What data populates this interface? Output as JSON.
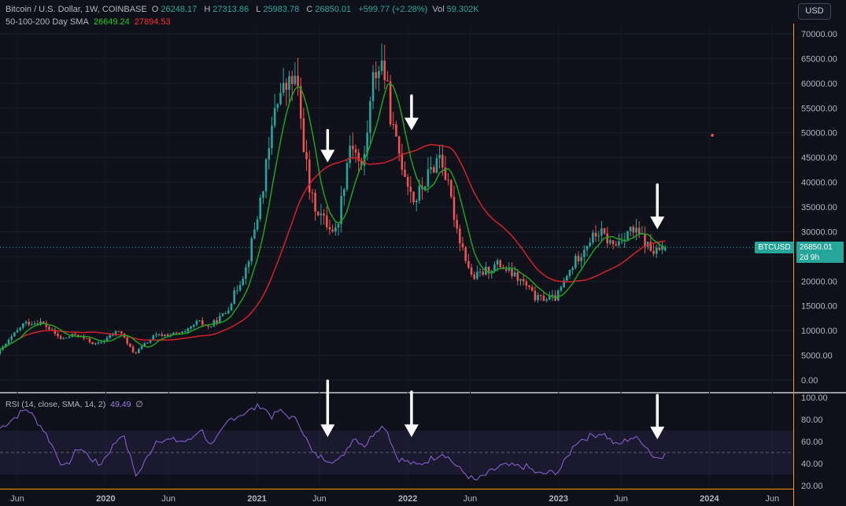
{
  "header": {
    "symbol": "Bitcoin / U.S. Dollar, 1W, COINBASE",
    "o_label": "O",
    "o_val": "26248.17",
    "h_label": "H",
    "h_val": "27313.86",
    "l_label": "L",
    "l_val": "25983.78",
    "c_label": "C",
    "c_val": "26850.01",
    "change": "+599.77 (+2.28%)",
    "vol_label": "Vol",
    "vol_val": "59.302K",
    "sma_label": "50-100-200 Day SMA",
    "sma1_val": "26649.24",
    "sma2_val": "27894.53"
  },
  "currency_button": "USD",
  "price_tag": {
    "symbol": "BTCUSD",
    "price": "26850.01",
    "countdown": "2d 9h"
  },
  "rsi_legend": {
    "label": "RSI (14, close, SMA, 14, 2)",
    "value": "49.49",
    "icon": "∅"
  },
  "colors": {
    "up": "#26a69a",
    "down": "#ef5350",
    "sma_green": "#1fa11f",
    "sma_red": "#d5202a",
    "rsi": "#7e57c2",
    "background": "#0e1119",
    "axis_orange": "#ff9800"
  },
  "chart_data": [
    {
      "type": "candlestick",
      "title": "Bitcoin / U.S. Dollar, 1W, COINBASE",
      "ylim": [
        0,
        70000
      ],
      "y_ticks": [
        "0.00",
        "5000.00",
        "10000.00",
        "15000.00",
        "20000.00",
        "25000.00",
        "30000.00",
        "35000.00",
        "40000.00",
        "45000.00",
        "50000.00",
        "55000.00",
        "60000.00",
        "65000.00",
        "70000.00"
      ],
      "x_ticks": [
        "Jun",
        "2020",
        "Jun",
        "2021",
        "Jun",
        "2022",
        "Jun",
        "2023",
        "Jun",
        "2024",
        "Jun"
      ],
      "x_tick_dates": [
        "2019-06",
        "2020-01",
        "2020-06",
        "2021-01",
        "2021-06",
        "2022-01",
        "2022-06",
        "2023-01",
        "2023-06",
        "2024-01",
        "2024-06"
      ],
      "price_path": [
        [
          "2019-04-20",
          5300
        ],
        [
          "2019-06-24",
          11500
        ],
        [
          "2019-08-05",
          11700
        ],
        [
          "2019-09-23",
          8200
        ],
        [
          "2019-10-28",
          9300
        ],
        [
          "2019-12-16",
          7100
        ],
        [
          "2020-02-10",
          10100
        ],
        [
          "2020-03-16",
          5300
        ],
        [
          "2020-05-04",
          8900
        ],
        [
          "2020-07-20",
          9600
        ],
        [
          "2020-08-17",
          11800
        ],
        [
          "2020-09-14",
          10700
        ],
        [
          "2020-10-26",
          13800
        ],
        [
          "2020-12-14",
          23000
        ],
        [
          "2021-01-11",
          34000
        ],
        [
          "2021-02-08",
          47000
        ],
        [
          "2021-02-22",
          57000
        ],
        [
          "2021-04-12",
          61000
        ],
        [
          "2021-05-17",
          37000
        ],
        [
          "2021-06-21",
          32000
        ],
        [
          "2021-07-19",
          30000
        ],
        [
          "2021-08-23",
          49000
        ],
        [
          "2021-09-20",
          42000
        ],
        [
          "2021-10-18",
          62000
        ],
        [
          "2021-11-08",
          64500
        ],
        [
          "2021-12-06",
          49000
        ],
        [
          "2022-01-24",
          36000
        ],
        [
          "2022-03-28",
          46000
        ],
        [
          "2022-05-09",
          30000
        ],
        [
          "2022-06-13",
          20500
        ],
        [
          "2022-08-15",
          23500
        ],
        [
          "2022-10-17",
          19500
        ],
        [
          "2022-11-14",
          16500
        ],
        [
          "2023-01-02",
          16600
        ],
        [
          "2023-02-13",
          23500
        ],
        [
          "2023-03-20",
          28000
        ],
        [
          "2023-04-17",
          30000
        ],
        [
          "2023-05-22",
          27000
        ],
        [
          "2023-06-26",
          30400
        ],
        [
          "2023-07-24",
          29300
        ],
        [
          "2023-08-21",
          26000
        ],
        [
          "2023-09-04",
          25900
        ],
        [
          "2023-09-18",
          26850
        ]
      ],
      "overlays": [
        {
          "name": "50-100-200 Day SMA",
          "value": "26649.24",
          "color": "#1fa11f"
        },
        {
          "name": "50-100-200 Day SMA",
          "value": "27894.53",
          "color": "#d5202a"
        }
      ],
      "last_price": 26850.01,
      "annotations": [
        {
          "type": "arrow-down",
          "x": "2021-06-21",
          "y_from": 50500,
          "y_to": 44000
        },
        {
          "type": "arrow-down",
          "x": "2022-01-10",
          "y_from": 57500,
          "y_to": 50500
        },
        {
          "type": "arrow-down",
          "x": "2023-08-28",
          "y_from": 39500,
          "y_to": 30500
        },
        {
          "type": "dot",
          "x": "2024-01-08",
          "y": 49500,
          "color": "#ef5350"
        }
      ]
    },
    {
      "type": "line",
      "title": "RSI (14, close, SMA, 14, 2)",
      "ylim": [
        20,
        100
      ],
      "y_ticks": [
        "20.00",
        "40.00",
        "60.00",
        "80.00",
        "100.00"
      ],
      "band": [
        30,
        70
      ],
      "midline": 50,
      "last_value": 49.49,
      "rsi_path": [
        [
          "2019-04-20",
          72
        ],
        [
          "2019-06-24",
          90
        ],
        [
          "2019-08-05",
          70
        ],
        [
          "2019-09-23",
          35
        ],
        [
          "2019-10-28",
          55
        ],
        [
          "2019-12-16",
          38
        ],
        [
          "2020-02-10",
          68
        ],
        [
          "2020-03-16",
          28
        ],
        [
          "2020-05-04",
          62
        ],
        [
          "2020-07-20",
          60
        ],
        [
          "2020-08-17",
          72
        ],
        [
          "2020-09-14",
          55
        ],
        [
          "2020-10-26",
          80
        ],
        [
          "2020-12-14",
          88
        ],
        [
          "2021-01-11",
          93
        ],
        [
          "2021-02-08",
          82
        ],
        [
          "2021-02-22",
          88
        ],
        [
          "2021-04-12",
          78
        ],
        [
          "2021-05-17",
          48
        ],
        [
          "2021-06-21",
          44
        ],
        [
          "2021-07-19",
          42
        ],
        [
          "2021-08-23",
          64
        ],
        [
          "2021-09-20",
          56
        ],
        [
          "2021-10-18",
          72
        ],
        [
          "2021-11-08",
          74
        ],
        [
          "2021-12-06",
          45
        ],
        [
          "2022-01-24",
          38
        ],
        [
          "2022-03-28",
          50
        ],
        [
          "2022-05-09",
          34
        ],
        [
          "2022-06-13",
          24
        ],
        [
          "2022-08-15",
          38
        ],
        [
          "2022-10-17",
          37
        ],
        [
          "2022-11-14",
          30
        ],
        [
          "2023-01-02",
          33
        ],
        [
          "2023-02-13",
          60
        ],
        [
          "2023-03-20",
          65
        ],
        [
          "2023-04-17",
          68
        ],
        [
          "2023-05-22",
          56
        ],
        [
          "2023-06-26",
          64
        ],
        [
          "2023-07-24",
          60
        ],
        [
          "2023-08-21",
          45
        ],
        [
          "2023-09-04",
          46
        ],
        [
          "2023-09-18",
          49.5
        ]
      ],
      "annotations": [
        {
          "type": "arrow-down",
          "x": "2021-06-21",
          "y_from": 115,
          "y_to": 64
        },
        {
          "type": "arrow-down",
          "x": "2022-01-10",
          "y_from": 105,
          "y_to": 64
        },
        {
          "type": "arrow-down",
          "x": "2023-08-28",
          "y_from": 102,
          "y_to": 62
        }
      ]
    }
  ]
}
